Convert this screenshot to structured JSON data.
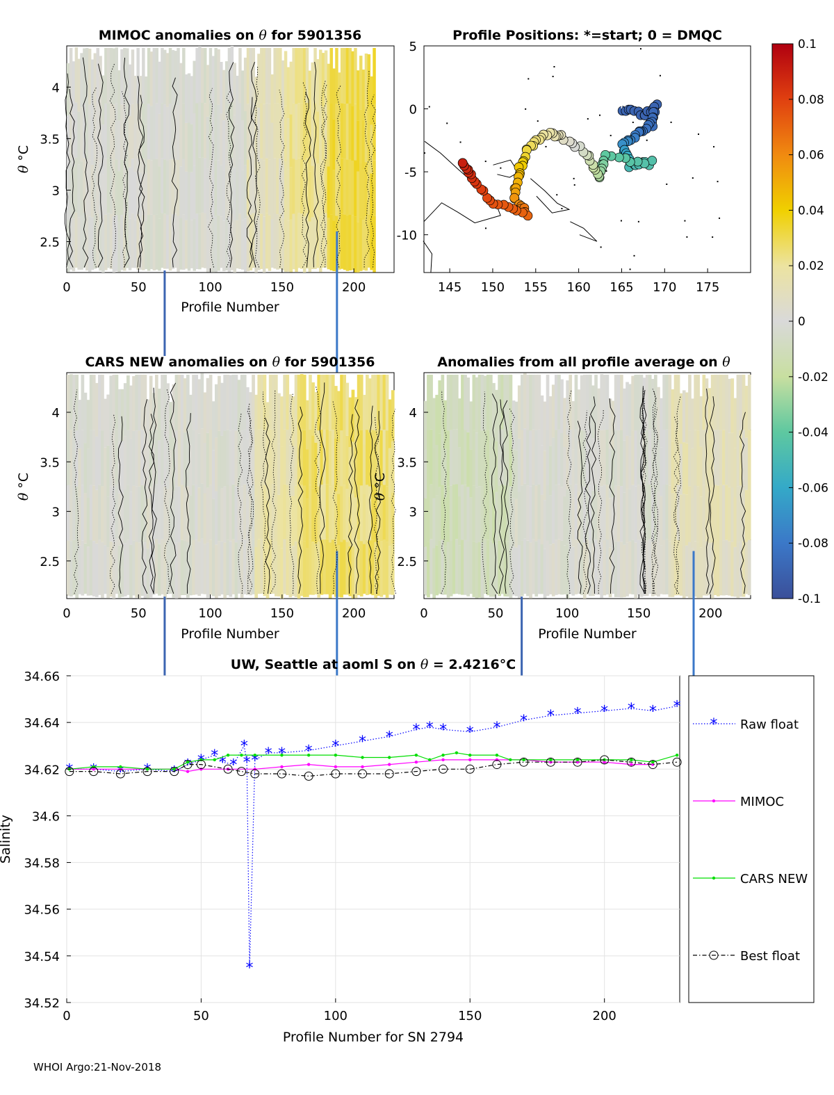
{
  "footer": "WHOI Argo:21-Nov-2018",
  "colorbar": {
    "ticks": [
      "0.1",
      "0.08",
      "0.06",
      "0.04",
      "0.02",
      "0",
      "-0.02",
      "-0.04",
      "-0.06",
      "-0.08",
      "-0.1"
    ],
    "range": [
      -0.1,
      0.1
    ]
  },
  "chart_data": [
    {
      "type": "heatmap",
      "title": "MIMOC anomalies on θ  for 5901356",
      "xlabel": "Profile Number",
      "ylabel": "θ °C",
      "xlim": [
        0,
        228
      ],
      "ylim": [
        2.2,
        4.4
      ],
      "xticks": [
        "0",
        "50",
        "100",
        "150",
        "200"
      ],
      "yticks": [
        "4",
        "3.5",
        "3",
        "2.5"
      ],
      "anomaly_by_profile_band": [
        {
          "from": 0,
          "to": 125,
          "value": 0.0
        },
        {
          "from": 125,
          "to": 150,
          "value": 0.01
        },
        {
          "from": 150,
          "to": 180,
          "value": 0.02
        },
        {
          "from": 180,
          "to": 215,
          "value": 0.03
        }
      ]
    },
    {
      "type": "scatter",
      "title": "Profile Positions: *=start; 0 = DMQC",
      "xlim": [
        142,
        180
      ],
      "ylim": [
        -13,
        5
      ],
      "xticks": [
        "145",
        "150",
        "155",
        "160",
        "165",
        "170",
        "175"
      ],
      "yticks": [
        "5",
        "0",
        "-5",
        "-10"
      ],
      "track": [
        {
          "lon": 165.0,
          "lat": 0.0,
          "value": -0.09
        },
        {
          "lon": 167.5,
          "lat": -0.5,
          "value": -0.09
        },
        {
          "lon": 169.0,
          "lat": 0.2,
          "value": -0.09
        },
        {
          "lon": 168.5,
          "lat": -1.2,
          "value": -0.085
        },
        {
          "lon": 167.0,
          "lat": -2.0,
          "value": -0.08
        },
        {
          "lon": 165.0,
          "lat": -3.0,
          "value": -0.07
        },
        {
          "lon": 166.0,
          "lat": -4.5,
          "value": -0.05
        },
        {
          "lon": 168.5,
          "lat": -4.3,
          "value": -0.045
        },
        {
          "lon": 163.0,
          "lat": -3.8,
          "value": -0.04
        },
        {
          "lon": 162.5,
          "lat": -5.5,
          "value": -0.025
        },
        {
          "lon": 161.0,
          "lat": -3.5,
          "value": -0.01
        },
        {
          "lon": 158.0,
          "lat": -2.2,
          "value": 0.01
        },
        {
          "lon": 156.0,
          "lat": -2.0,
          "value": 0.02
        },
        {
          "lon": 154.0,
          "lat": -3.2,
          "value": 0.03
        },
        {
          "lon": 153.0,
          "lat": -5.0,
          "value": 0.045
        },
        {
          "lon": 152.5,
          "lat": -7.0,
          "value": 0.055
        },
        {
          "lon": 154.0,
          "lat": -8.5,
          "value": 0.07
        },
        {
          "lon": 150.0,
          "lat": -7.5,
          "value": 0.075
        },
        {
          "lon": 147.5,
          "lat": -5.5,
          "value": 0.085
        },
        {
          "lon": 146.5,
          "lat": -4.3,
          "value": 0.09
        }
      ]
    },
    {
      "type": "heatmap",
      "title": "CARS NEW anomalies on θ for 5901356",
      "xlabel": "Profile Number",
      "ylabel": "θ °C",
      "xlim": [
        0,
        228
      ],
      "ylim": [
        2.12,
        4.4
      ],
      "xticks": [
        "0",
        "50",
        "100",
        "150",
        "200"
      ],
      "yticks": [
        "4",
        "3.5",
        "3",
        "2.5"
      ],
      "anomaly_by_profile_band": [
        {
          "from": 0,
          "to": 130,
          "value": 0.0
        },
        {
          "from": 130,
          "to": 160,
          "value": 0.015
        },
        {
          "from": 160,
          "to": 228,
          "value": 0.025
        }
      ]
    },
    {
      "type": "heatmap",
      "title": "Anomalies from all profile average on θ",
      "xlabel": "Profile Number",
      "ylabel": "θ °C",
      "xlim": [
        0,
        228
      ],
      "ylim": [
        2.12,
        4.4
      ],
      "xticks": [
        "0",
        "50",
        "100",
        "150",
        "200"
      ],
      "yticks": [
        "4",
        "3.5",
        "3",
        "2.5"
      ],
      "anomaly_by_profile_band": [
        {
          "from": 0,
          "to": 60,
          "value": -0.01
        },
        {
          "from": 60,
          "to": 170,
          "value": 0.0
        },
        {
          "from": 170,
          "to": 228,
          "value": 0.01
        }
      ]
    },
    {
      "type": "line",
      "title": "UW, Seattle at aoml S on θ = 2.4216°C",
      "xlabel": "Profile Number for SN 2794",
      "ylabel": "Salinity",
      "xlim": [
        0,
        228
      ],
      "ylim": [
        34.52,
        34.66
      ],
      "xticks": [
        "0",
        "50",
        "100",
        "150",
        "200"
      ],
      "yticks": [
        "34.66",
        "34.64",
        "34.62",
        "34.6",
        "34.58",
        "34.56",
        "34.54",
        "34.52"
      ],
      "legend": [
        "Raw float",
        "MIMOC",
        "CARS NEW",
        "Best float"
      ],
      "series": [
        {
          "name": "Raw float",
          "color": "#0000ff",
          "x": [
            1,
            10,
            20,
            30,
            40,
            45,
            50,
            55,
            58,
            62,
            66,
            67,
            68,
            70,
            75,
            80,
            90,
            100,
            110,
            120,
            130,
            135,
            140,
            150,
            160,
            170,
            180,
            190,
            200,
            210,
            218,
            227
          ],
          "y": [
            34.62,
            34.62,
            34.619,
            34.62,
            34.619,
            34.622,
            34.624,
            34.626,
            34.623,
            34.622,
            34.63,
            34.623,
            34.535,
            34.624,
            34.627,
            34.627,
            34.628,
            34.63,
            34.632,
            34.634,
            34.637,
            34.638,
            34.637,
            34.636,
            34.638,
            34.641,
            34.643,
            34.644,
            34.645,
            34.646,
            34.645,
            34.647
          ]
        },
        {
          "name": "MIMOC",
          "color": "#ff00ff",
          "x": [
            1,
            10,
            20,
            30,
            40,
            45,
            50,
            60,
            70,
            80,
            90,
            100,
            110,
            120,
            130,
            140,
            150,
            160,
            170,
            180,
            190,
            200,
            210,
            218
          ],
          "y": [
            34.62,
            34.62,
            34.62,
            34.62,
            34.62,
            34.619,
            34.62,
            34.62,
            34.62,
            34.621,
            34.622,
            34.621,
            34.621,
            34.622,
            34.623,
            34.624,
            34.624,
            34.624,
            34.624,
            34.623,
            34.623,
            34.623,
            34.622,
            34.622
          ]
        },
        {
          "name": "CARS NEW",
          "color": "#00dd00",
          "x": [
            1,
            10,
            20,
            30,
            40,
            45,
            50,
            55,
            60,
            65,
            70,
            80,
            90,
            100,
            110,
            120,
            130,
            135,
            140,
            145,
            150,
            160,
            165,
            170,
            180,
            190,
            200,
            210,
            218,
            227
          ],
          "y": [
            34.62,
            34.621,
            34.621,
            34.62,
            34.62,
            34.623,
            34.624,
            34.624,
            34.626,
            34.626,
            34.626,
            34.626,
            34.626,
            34.626,
            34.625,
            34.625,
            34.626,
            34.624,
            34.626,
            34.627,
            34.626,
            34.626,
            34.624,
            34.624,
            34.624,
            34.624,
            34.624,
            34.624,
            34.623,
            34.626
          ]
        },
        {
          "name": "Best float",
          "color": "#000000",
          "x": [
            1,
            10,
            20,
            30,
            40,
            45,
            50,
            60,
            65,
            70,
            80,
            90,
            100,
            110,
            120,
            130,
            140,
            150,
            160,
            170,
            180,
            190,
            200,
            210,
            218,
            227
          ],
          "y": [
            34.619,
            34.619,
            34.618,
            34.619,
            34.619,
            34.622,
            34.622,
            34.62,
            34.619,
            34.618,
            34.618,
            34.617,
            34.618,
            34.618,
            34.618,
            34.619,
            34.62,
            34.62,
            34.622,
            34.623,
            34.623,
            34.623,
            34.624,
            34.623,
            34.622,
            34.623
          ]
        }
      ]
    }
  ]
}
